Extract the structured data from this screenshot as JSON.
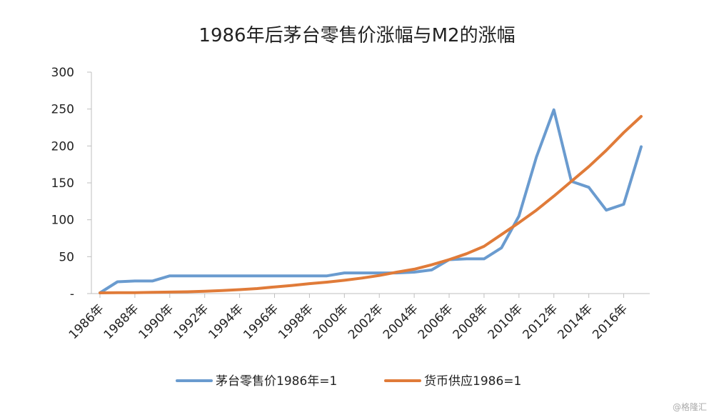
{
  "chart_data": {
    "type": "line",
    "title": "1986年后茅台零售价涨幅与M2的涨幅",
    "x": [
      1986,
      1987,
      1988,
      1989,
      1990,
      1991,
      1992,
      1993,
      1994,
      1995,
      1996,
      1997,
      1998,
      1999,
      2000,
      2001,
      2002,
      2003,
      2004,
      2005,
      2006,
      2007,
      2008,
      2009,
      2010,
      2011,
      2012,
      2013,
      2014,
      2015,
      2016,
      2017
    ],
    "x_tick_labels": [
      "1986年",
      "1988年",
      "1990年",
      "1992年",
      "1994年",
      "1996年",
      "1998年",
      "2000年",
      "2002年",
      "2004年",
      "2006年",
      "2008年",
      "2010年",
      "2012年",
      "2014年",
      "2016年"
    ],
    "y_tick_labels": [
      "-",
      "50",
      "100",
      "150",
      "200",
      "250",
      "300"
    ],
    "ylim": [
      0,
      300
    ],
    "series": [
      {
        "name": "茅台零售价1986年=1",
        "color": "#6a9bcf",
        "values": [
          1,
          16,
          17,
          17,
          24,
          24,
          24,
          24,
          24,
          24,
          24,
          24,
          24,
          24,
          28,
          28,
          28,
          28,
          29,
          32,
          46,
          47,
          47,
          62,
          105,
          185,
          249,
          152,
          144,
          113,
          121,
          199
        ]
      },
      {
        "name": "货币供应1986=1",
        "color": "#e07b39",
        "values": [
          1,
          1.2,
          1.3,
          1.6,
          2,
          2.4,
          3.2,
          4.2,
          5.3,
          6.8,
          9,
          11,
          13.5,
          15.5,
          18,
          21,
          24.5,
          29,
          33,
          39,
          46,
          54,
          64,
          80,
          96,
          113,
          132,
          152,
          172,
          194,
          218,
          240
        ]
      }
    ],
    "legend_position": "bottom",
    "grid": false
  },
  "watermark": "@格隆汇"
}
